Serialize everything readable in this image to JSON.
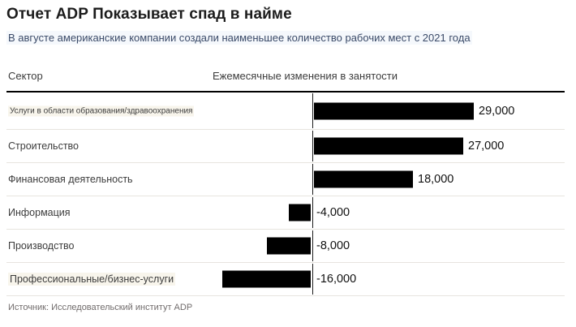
{
  "header": {
    "title": "Отчет ADP Показывает спад в найме",
    "subtitle": "В августе американские компании создали наименьшее количество рабочих мест с 2021 года"
  },
  "table_headers": {
    "sector": "Сектор",
    "change": "Ежемесячные изменения в занятости"
  },
  "chart_data": {
    "type": "bar",
    "orientation": "horizontal",
    "title": "Отчет ADP Показывает спад в найме",
    "subtitle": "В августе американские компании создали наименьшее количество рабочих мест с 2021 года",
    "xlabel": "Ежемесячные изменения в занятости",
    "ylabel": "Сектор",
    "categories": [
      "Услуги в области образования/здравоохранения",
      "Строительство",
      "Финансовая деятельность",
      "Информация",
      "Производство",
      "Профессиональные/бизнес-услуги"
    ],
    "values": [
      29000,
      27000,
      18000,
      -4000,
      -8000,
      -16000
    ],
    "value_labels": [
      "29,000",
      "27,000",
      "18,000",
      "-4,000",
      "-8,000",
      "-16,000"
    ],
    "xlim": [
      -16000,
      29000
    ],
    "grid": false,
    "legend": null,
    "bar_color": "#000000"
  },
  "footer": {
    "source": "Источник: Исследовательский институт ADP"
  },
  "colors": {
    "bar": "#000000",
    "subtitle_text": "#3a4a68",
    "title_text": "#1c1c1c",
    "source_text": "#716c6c"
  }
}
